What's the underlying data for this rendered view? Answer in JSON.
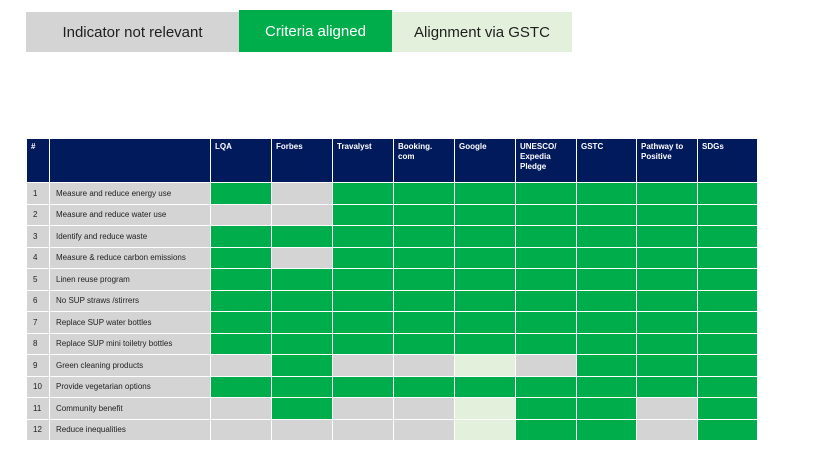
{
  "legend": {
    "not_relevant": "Indicator not relevant",
    "aligned": "Criteria aligned",
    "gstc": "Alignment via GSTC"
  },
  "colors": {
    "aligned": "#00ad4b",
    "not_relevant": "#d4d4d4",
    "via_gstc": "#e3f1dc",
    "header": "#001a5c"
  },
  "table": {
    "headers": [
      "#",
      "",
      "LQA",
      "Forbes",
      "Travalyst",
      "Booking.\ncom",
      "Google",
      "UNESCO/\nExpedia\nPledge",
      "GSTC",
      "Pathway to\nPositive",
      "SDGs"
    ],
    "rows": [
      {
        "num": "1",
        "label": "Measure and reduce energy use",
        "cells": [
          "g",
          "x",
          "g",
          "g",
          "g",
          "g",
          "g",
          "g",
          "g"
        ]
      },
      {
        "num": "2",
        "label": "Measure and reduce water use",
        "cells": [
          "x",
          "x",
          "g",
          "g",
          "g",
          "g",
          "g",
          "g",
          "g"
        ]
      },
      {
        "num": "3",
        "label": "Identify and reduce waste",
        "cells": [
          "g",
          "g",
          "g",
          "g",
          "g",
          "g",
          "g",
          "g",
          "g"
        ]
      },
      {
        "num": "4",
        "label": "Measure & reduce carbon emissions",
        "cells": [
          "g",
          "x",
          "g",
          "g",
          "g",
          "g",
          "g",
          "g",
          "g"
        ]
      },
      {
        "num": "5",
        "label": "Linen reuse program",
        "cells": [
          "g",
          "g",
          "g",
          "g",
          "g",
          "g",
          "g",
          "g",
          "g"
        ]
      },
      {
        "num": "6",
        "label": "No SUP straws /stirrers",
        "cells": [
          "g",
          "g",
          "g",
          "g",
          "g",
          "g",
          "g",
          "g",
          "g"
        ]
      },
      {
        "num": "7",
        "label": "Replace SUP water bottles",
        "cells": [
          "g",
          "g",
          "g",
          "g",
          "g",
          "g",
          "g",
          "g",
          "g"
        ]
      },
      {
        "num": "8",
        "label": "Replace SUP mini toiletry bottles",
        "cells": [
          "g",
          "g",
          "g",
          "g",
          "g",
          "g",
          "g",
          "g",
          "g"
        ]
      },
      {
        "num": "9",
        "label": "Green cleaning products",
        "cells": [
          "x",
          "g",
          "x",
          "x",
          "l",
          "x",
          "g",
          "g",
          "g"
        ]
      },
      {
        "num": "10",
        "label": "Provide vegetarian options",
        "cells": [
          "g",
          "g",
          "g",
          "g",
          "g",
          "g",
          "g",
          "g",
          "g"
        ]
      },
      {
        "num": "11",
        "label": "Community benefit",
        "cells": [
          "x",
          "g",
          "x",
          "x",
          "l",
          "g",
          "g",
          "x",
          "g"
        ]
      },
      {
        "num": "12",
        "label": "Reduce inequalities",
        "cells": [
          "x",
          "x",
          "x",
          "x",
          "l",
          "g",
          "g",
          "x",
          "g"
        ]
      }
    ]
  }
}
